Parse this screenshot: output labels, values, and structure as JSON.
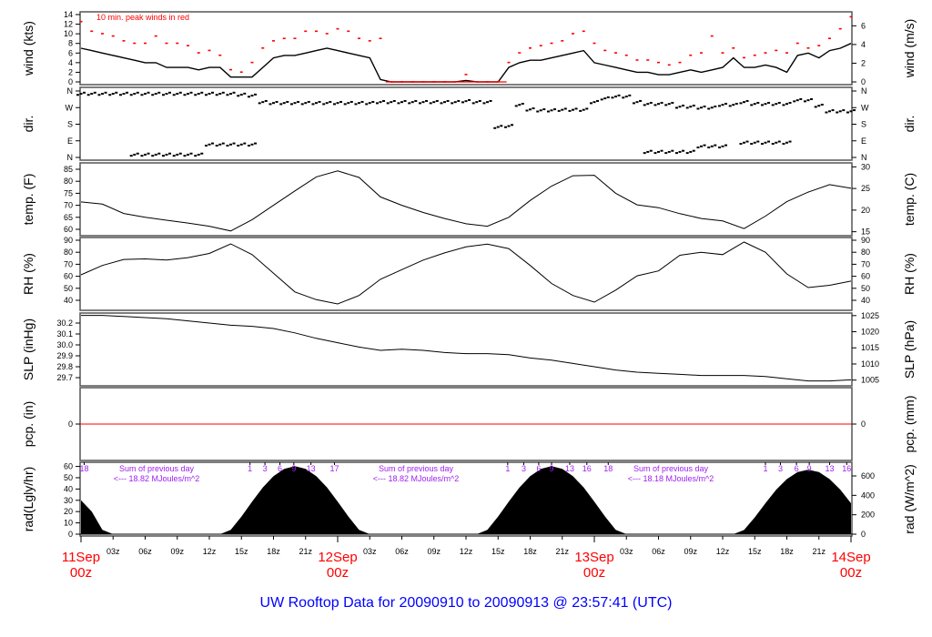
{
  "title": "UW Rooftop Data for 20090910  to  20090913 @ 23:57:41  (UTC)",
  "colors": {
    "trace": "#000000",
    "peak": "#ff0000",
    "pcp": "#ff0000",
    "annotation": "#a020f0",
    "title": "#0000ff",
    "day_label": "#ff0000",
    "frame": "#555555"
  },
  "chart_data": {
    "type": "line",
    "x_axis": {
      "days": [
        "11Sep",
        "12Sep",
        "13Sep",
        "14Sep"
      ],
      "day_hour_label": "00z",
      "hour_labels": [
        "03z",
        "06z",
        "09z",
        "12z",
        "15z",
        "18z",
        "21z"
      ]
    },
    "times_hourly": [
      "11Sep 00z",
      "11Sep 01z",
      "11Sep 02z",
      "11Sep 03z",
      "11Sep 04z",
      "11Sep 05z",
      "11Sep 06z",
      "11Sep 07z",
      "11Sep 08z",
      "11Sep 09z",
      "11Sep 10z",
      "11Sep 11z",
      "11Sep 12z",
      "11Sep 13z",
      "11Sep 14z",
      "11Sep 15z",
      "11Sep 16z",
      "11Sep 17z",
      "11Sep 18z",
      "11Sep 19z",
      "11Sep 20z",
      "11Sep 21z",
      "11Sep 22z",
      "11Sep 23z",
      "12Sep 00z",
      "12Sep 01z",
      "12Sep 02z",
      "12Sep 03z",
      "12Sep 04z",
      "12Sep 05z",
      "12Sep 06z",
      "12Sep 07z",
      "12Sep 08z",
      "12Sep 09z",
      "12Sep 10z",
      "12Sep 11z",
      "12Sep 12z",
      "12Sep 13z",
      "12Sep 14z",
      "12Sep 15z",
      "12Sep 16z",
      "12Sep 17z",
      "12Sep 18z",
      "12Sep 19z",
      "12Sep 20z",
      "12Sep 21z",
      "12Sep 22z",
      "12Sep 23z",
      "13Sep 00z",
      "13Sep 01z",
      "13Sep 02z",
      "13Sep 03z",
      "13Sep 04z",
      "13Sep 05z",
      "13Sep 06z",
      "13Sep 07z",
      "13Sep 08z",
      "13Sep 09z",
      "13Sep 10z",
      "13Sep 11z",
      "13Sep 12z",
      "13Sep 13z",
      "13Sep 14z",
      "13Sep 15z",
      "13Sep 16z",
      "13Sep 17z",
      "13Sep 18z",
      "13Sep 19z",
      "13Sep 20z",
      "13Sep 21z",
      "13Sep 22z",
      "13Sep 23z",
      "14Sep 00z"
    ],
    "times_2h": [
      "11Sep 00z",
      "11Sep 02z",
      "11Sep 04z",
      "11Sep 06z",
      "11Sep 08z",
      "11Sep 10z",
      "11Sep 12z",
      "11Sep 14z",
      "11Sep 16z",
      "11Sep 18z",
      "11Sep 20z",
      "11Sep 22z",
      "12Sep 00z",
      "12Sep 02z",
      "12Sep 04z",
      "12Sep 06z",
      "12Sep 08z",
      "12Sep 10z",
      "12Sep 12z",
      "12Sep 14z",
      "12Sep 16z",
      "12Sep 18z",
      "12Sep 20z",
      "12Sep 22z",
      "13Sep 00z",
      "13Sep 02z",
      "13Sep 04z",
      "13Sep 06z",
      "13Sep 08z",
      "13Sep 10z",
      "13Sep 12z",
      "13Sep 14z",
      "13Sep 16z",
      "13Sep 18z",
      "13Sep 20z",
      "13Sep 22z",
      "14Sep 00z"
    ],
    "panels": {
      "wind": {
        "left_label": "wind (kts)",
        "right_label": "wind (m/s)",
        "left_ticks": [
          0,
          2,
          4,
          6,
          8,
          10,
          12,
          14
        ],
        "right_ticks": [
          0,
          2,
          4,
          6
        ],
        "ylim_kts": [
          0,
          14
        ],
        "note": "10 min. peak winds in red",
        "mean_kts": [
          7,
          6.5,
          6,
          5.5,
          5,
          4.5,
          4,
          4,
          3,
          3,
          3,
          2.5,
          3,
          3,
          1,
          1,
          1,
          3,
          5,
          5.5,
          5.5,
          6,
          6.5,
          7,
          6.5,
          6,
          5.5,
          5,
          0.5,
          0,
          0,
          0,
          0,
          0,
          0,
          0,
          0.3,
          0,
          0,
          0,
          3,
          4,
          4.5,
          4.5,
          5,
          5.5,
          6,
          6.5,
          4,
          3.5,
          3,
          2.5,
          2,
          2,
          1.5,
          1.5,
          2,
          2.5,
          2,
          2.5,
          3,
          5,
          3,
          3,
          3.5,
          3,
          2,
          5.5,
          6,
          5,
          6.5,
          7,
          8
        ],
        "peak_kts": [
          12.5,
          10.5,
          10,
          9.5,
          8.5,
          8,
          8,
          9.5,
          8,
          8,
          7.5,
          6,
          6.5,
          5.5,
          2.5,
          2,
          4,
          7,
          8.5,
          9,
          9,
          10.5,
          10.5,
          10,
          11,
          10.5,
          9,
          8.5,
          9,
          0,
          0,
          0,
          0,
          0,
          0,
          0,
          1.5,
          0,
          0,
          0,
          4,
          6,
          7,
          7.5,
          8,
          8.5,
          10,
          10.5,
          8,
          6.5,
          6,
          5.5,
          4.5,
          4.5,
          4,
          3.5,
          4,
          5.5,
          6,
          9.5,
          6,
          7,
          5,
          5.5,
          6,
          6.5,
          6,
          8,
          7,
          7.5,
          9,
          11,
          13.5
        ]
      },
      "dir": {
        "left_label": "dir.",
        "right_label": "dir.",
        "tick_labels": [
          "N",
          "W",
          "S",
          "E",
          "N"
        ],
        "tick_degrees": [
          360,
          270,
          180,
          90,
          0
        ],
        "primary_deg": [
          345,
          345,
          345,
          345,
          345,
          345,
          345,
          345,
          345,
          345,
          345,
          345,
          345,
          345,
          345,
          340,
          335,
          300,
          295,
          295,
          295,
          295,
          295,
          295,
          295,
          295,
          295,
          295,
          300,
          300,
          300,
          300,
          300,
          300,
          300,
          300,
          305,
          300,
          300,
          165,
          170,
          285,
          260,
          255,
          255,
          258,
          258,
          258,
          300,
          320,
          330,
          330,
          300,
          290,
          290,
          290,
          275,
          275,
          270,
          270,
          285,
          285,
          300,
          290,
          290,
          290,
          290,
          310,
          310,
          280,
          250,
          250,
          250
        ],
        "secondary_deg": [
          null,
          null,
          null,
          null,
          null,
          15,
          15,
          15,
          15,
          15,
          15,
          15,
          70,
          70,
          70,
          70,
          70,
          null,
          null,
          null,
          null,
          null,
          null,
          null,
          null,
          null,
          null,
          null,
          null,
          null,
          null,
          null,
          null,
          null,
          null,
          null,
          null,
          null,
          null,
          null,
          null,
          null,
          null,
          null,
          null,
          null,
          null,
          null,
          null,
          null,
          null,
          null,
          null,
          30,
          30,
          30,
          30,
          30,
          60,
          60,
          60,
          null,
          80,
          80,
          80,
          80,
          80,
          null,
          null,
          null,
          null,
          null,
          null
        ]
      },
      "temp": {
        "left_label": "temp. (F)",
        "right_label": "temp. (C)",
        "left_ticks": [
          60,
          65,
          70,
          75,
          80,
          85
        ],
        "right_ticks": [
          15,
          20,
          25,
          30
        ],
        "values_F": [
          71.4,
          70.5,
          66.6,
          65,
          63.8,
          62.6,
          61.3,
          59.3,
          64,
          70,
          76,
          81.8,
          84.3,
          81.6,
          73.5,
          70,
          67,
          64.5,
          62.3,
          61.3,
          65,
          72,
          78,
          82.3,
          82.5,
          75,
          70.2,
          69,
          66.5,
          64.5,
          63.5,
          60.3,
          65.5,
          71.5,
          75.5,
          78.6,
          77.1
        ]
      },
      "rh": {
        "left_label": "RH (%)",
        "right_label": "RH (%)",
        "left_ticks": [
          40,
          50,
          60,
          70,
          80,
          90
        ],
        "right_ticks": [
          40,
          50,
          60,
          70,
          80,
          90
        ],
        "values_pct": [
          61.2,
          69,
          74,
          74.5,
          73.5,
          75.5,
          79,
          87,
          78,
          62.5,
          47,
          40.5,
          37,
          44,
          57.5,
          65.5,
          73.5,
          79.5,
          84.5,
          86.8,
          83,
          69,
          54,
          44,
          38.5,
          48.5,
          60.4,
          64.5,
          77.5,
          80,
          78,
          88.5,
          80,
          62,
          50.6,
          52.5,
          56
        ]
      },
      "slp": {
        "left_label": "SLP (inHg)",
        "right_label": "SLP (hPa)",
        "left_ticks": [
          "29.7",
          "29.8",
          "29.9",
          "30.0",
          "30.1",
          "30.2"
        ],
        "right_ticks": [
          1005,
          1010,
          1015,
          1020,
          1025
        ],
        "values_inHg": [
          30.27,
          30.27,
          30.26,
          30.25,
          30.24,
          30.22,
          30.2,
          30.18,
          30.17,
          30.15,
          30.11,
          30.06,
          30.02,
          29.98,
          29.95,
          29.96,
          29.95,
          29.93,
          29.92,
          29.92,
          29.91,
          29.88,
          29.86,
          29.83,
          29.8,
          29.77,
          29.75,
          29.74,
          29.73,
          29.72,
          29.72,
          29.72,
          29.71,
          29.69,
          29.67,
          29.67,
          29.68
        ]
      },
      "pcp": {
        "left_label": "pcp. (in)",
        "right_label": "pcp. (mm)",
        "left_ticks": [
          0
        ],
        "right_ticks": [
          0
        ],
        "value_in": 0
      },
      "rad": {
        "left_label": "rad(Lgly/hr)",
        "right_label": "rad (W/m^2)",
        "left_ticks": [
          0,
          10,
          20,
          30,
          40,
          50,
          60
        ],
        "right_ticks": [
          0,
          200,
          400,
          600
        ],
        "values_Wm2": [
          350,
          233,
          45,
          0,
          0,
          0,
          0,
          0,
          0,
          0,
          0,
          0,
          0,
          0,
          45,
          182,
          336,
          482,
          597,
          673,
          700,
          673,
          597,
          482,
          336,
          182,
          45,
          0,
          0,
          0,
          0,
          0,
          0,
          0,
          0,
          0,
          0,
          0,
          45,
          182,
          336,
          482,
          597,
          673,
          700,
          673,
          597,
          482,
          336,
          182,
          45,
          0,
          0,
          0,
          0,
          0,
          0,
          0,
          0,
          0,
          0,
          0,
          43,
          173,
          319,
          458,
          567,
          639,
          665,
          639,
          567,
          458,
          319
        ],
        "daily_sums": [
          {
            "line1": "Sum of previous day",
            "line2": "<--- 18.82 MJoules/m^2"
          },
          {
            "line1": "Sum of previous day",
            "line2": "<--- 18.82 MJoules/m^2"
          },
          {
            "line1": "Sum of previous day",
            "line2": "<--- 18.18 MJoules/m^2"
          }
        ],
        "cumulative_marks": [
          {
            "v": "18",
            "t": "11Sep 00:18"
          },
          {
            "v": "1",
            "t": "11Sep 15:48"
          },
          {
            "v": "3",
            "t": "11Sep 17:12"
          },
          {
            "v": "6",
            "t": "11Sep 18:36"
          },
          {
            "v": "9",
            "t": "11Sep 19:54"
          },
          {
            "v": "13",
            "t": "11Sep 21:30"
          },
          {
            "v": "17",
            "t": "11Sep 23:42"
          },
          {
            "v": "1",
            "t": "12Sep 15:54"
          },
          {
            "v": "3",
            "t": "12Sep 17:24"
          },
          {
            "v": "6",
            "t": "12Sep 18:48"
          },
          {
            "v": "9",
            "t": "12Sep 20:00"
          },
          {
            "v": "13",
            "t": "12Sep 21:42"
          },
          {
            "v": "16",
            "t": "12Sep 23:18"
          },
          {
            "v": "18",
            "t": "13Sep 01:18"
          },
          {
            "v": "1",
            "t": "13Sep 16:00"
          },
          {
            "v": "3",
            "t": "13Sep 17:24"
          },
          {
            "v": "6",
            "t": "13Sep 18:54"
          },
          {
            "v": "9",
            "t": "13Sep 20:06"
          },
          {
            "v": "13",
            "t": "13Sep 22:00"
          },
          {
            "v": "16",
            "t": "13Sep 23:36"
          }
        ]
      }
    }
  }
}
